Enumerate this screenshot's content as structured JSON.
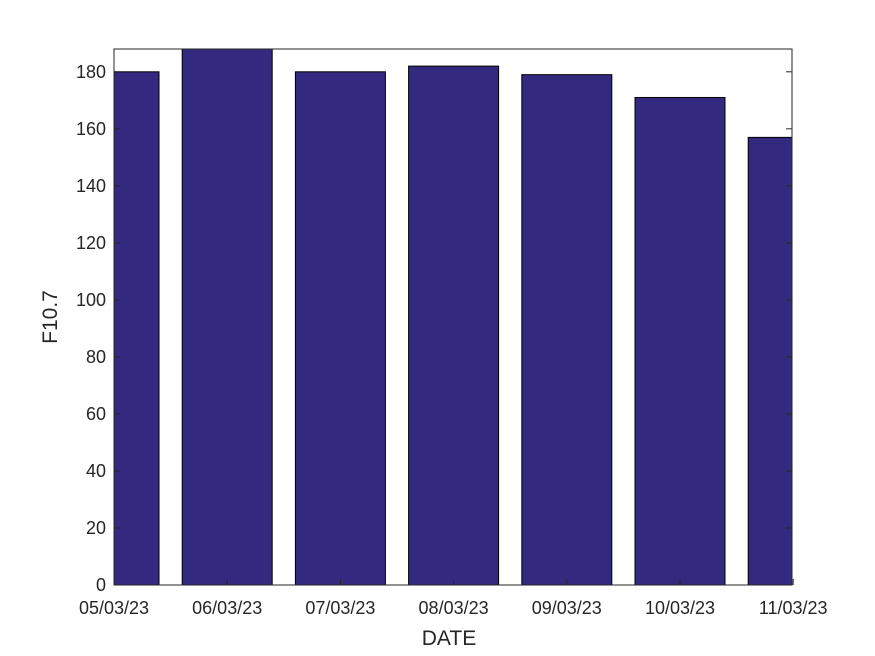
{
  "chart_data": {
    "type": "bar",
    "categories": [
      "05/03/23",
      "06/03/23",
      "07/03/23",
      "08/03/23",
      "09/03/23",
      "10/03/23",
      "11/03/23"
    ],
    "values": [
      180,
      188,
      180,
      182,
      179,
      171,
      157
    ],
    "xlabel": "DATE",
    "ylabel": "F10.7",
    "ylim": [
      0,
      188
    ],
    "yticks": [
      0,
      20,
      40,
      60,
      80,
      100,
      120,
      140,
      160,
      180
    ],
    "grid": false,
    "bar_color": "#33297f",
    "bar_edge_color": "#000000"
  }
}
